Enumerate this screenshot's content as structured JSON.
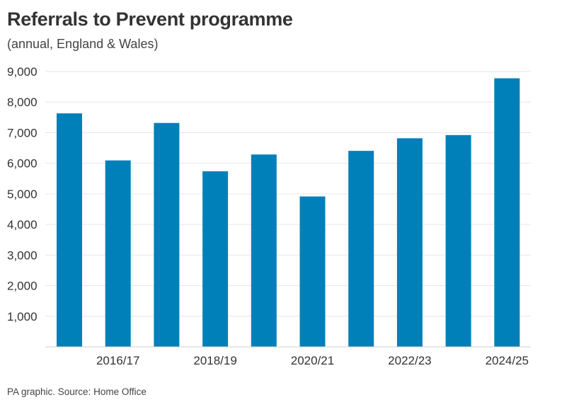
{
  "chart_data": {
    "type": "bar",
    "title": "Referrals to Prevent programme",
    "subtitle": "(annual, England & Wales)",
    "source": "PA graphic. Source: Home Office",
    "categories": [
      "",
      "2016/17",
      "",
      "2018/19",
      "",
      "2020/21",
      "",
      "2022/23",
      "",
      "2024/25"
    ],
    "values": [
      7631,
      6093,
      7318,
      5738,
      6287,
      4915,
      6406,
      6817,
      6922,
      8778
    ],
    "ylim": [
      0,
      9000
    ],
    "yticks": [
      1000,
      2000,
      3000,
      4000,
      5000,
      6000,
      7000,
      8000,
      9000
    ],
    "ytick_labels": [
      "1,000",
      "2,000",
      "3,000",
      "4,000",
      "5,000",
      "6,000",
      "7,000",
      "8,000",
      "9,000"
    ],
    "grid": true,
    "xlabel": "",
    "ylabel": "",
    "bar_color": "#0080b9",
    "grid_color": "#e6e6e6"
  }
}
